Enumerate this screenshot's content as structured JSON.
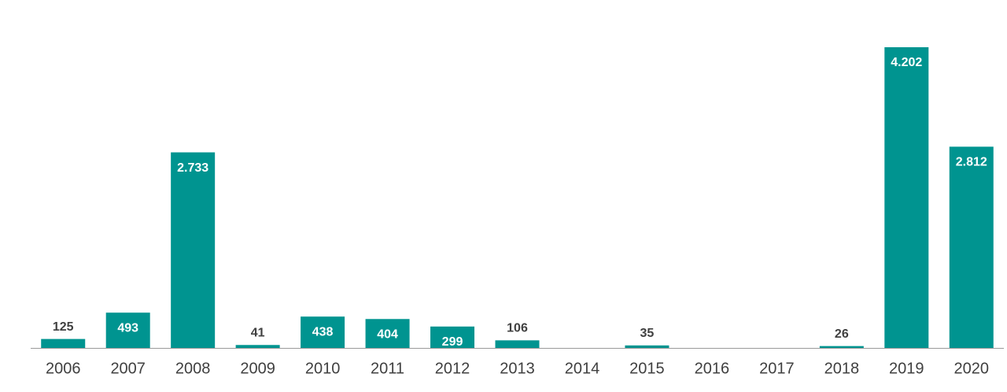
{
  "chart_data": {
    "type": "bar",
    "categories": [
      "2006",
      "2007",
      "2008",
      "2009",
      "2010",
      "2011",
      "2012",
      "2013",
      "2014",
      "2015",
      "2016",
      "2017",
      "2018",
      "2019",
      "2020"
    ],
    "values": [
      125,
      493,
      2733,
      41,
      438,
      404,
      299,
      106,
      null,
      35,
      null,
      null,
      26,
      4202,
      2812
    ],
    "value_labels": [
      "125",
      "493",
      "2.733",
      "41",
      "438",
      "404",
      "299",
      "106",
      null,
      "35",
      null,
      null,
      "26",
      "4.202",
      "2.812"
    ],
    "color": "#009490"
  }
}
